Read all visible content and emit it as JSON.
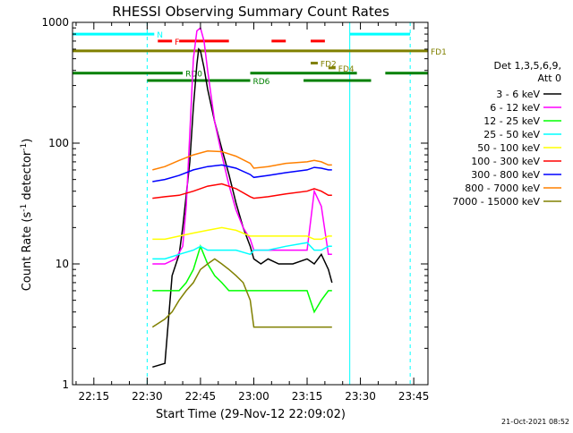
{
  "chart_data": {
    "type": "line",
    "title": "RHESSI Observing Summary Count Rates",
    "xlabel": "Start Time (29-Nov-12 22:09:02)",
    "ylabel": "Count Rate (s",
    "ylabel_sup": "-1",
    "ylabel_rest": " detector",
    "ylabel_sup2": "-1",
    "ylabel_end": ")",
    "y_scale": "log",
    "ylim": [
      1,
      1000
    ],
    "xlim_minutes": [
      0,
      100
    ],
    "x_tick_labels": [
      "22:15",
      "22:30",
      "22:45",
      "23:00",
      "23:15",
      "23:30",
      "23:45"
    ],
    "x_tick_minutes": [
      6,
      21,
      36,
      51,
      66,
      81,
      96
    ],
    "y_tick_labels": [
      "1",
      "10",
      "100",
      "1000"
    ],
    "y_tick_values": [
      1,
      10,
      100,
      1000
    ],
    "grid": false,
    "legend_header": [
      "Det 1,3,5,6,9,",
      "Att 0"
    ],
    "legend_placement": "right",
    "footer_date": "21-Oct-2021 08:52",
    "series": [
      {
        "name": "3 - 6 keV",
        "color": "#000000",
        "x": [
          22.5,
          26,
          28,
          30,
          31,
          33,
          34,
          35,
          35.5,
          36,
          37,
          38,
          40,
          42,
          44,
          46,
          48,
          50,
          51,
          53,
          55,
          58,
          62,
          66,
          68,
          70,
          72,
          73
        ],
        "y": [
          1.4,
          1.5,
          8,
          12,
          20,
          70,
          200,
          450,
          600,
          580,
          420,
          280,
          150,
          90,
          55,
          32,
          20,
          14,
          11,
          10,
          11,
          10,
          10,
          11,
          10,
          12,
          9,
          7
        ]
      },
      {
        "name": "6 - 12 keV",
        "color": "#ff00ff",
        "x": [
          22.5,
          26,
          29,
          31,
          32,
          33,
          34,
          35,
          36,
          37,
          38,
          40,
          42,
          44,
          46,
          48,
          50,
          51,
          55,
          60,
          66,
          68,
          70,
          72,
          73
        ],
        "y": [
          10,
          10,
          11,
          14,
          30,
          120,
          500,
          850,
          900,
          700,
          400,
          150,
          80,
          45,
          28,
          20,
          16,
          13,
          13,
          13,
          13,
          40,
          30,
          12,
          12
        ]
      },
      {
        "name": "12 - 25 keV",
        "color": "#00ff00",
        "x": [
          22.5,
          26,
          30,
          32,
          34,
          36,
          38,
          40,
          42,
          44,
          46,
          48,
          50,
          51,
          55,
          60,
          65,
          66,
          68,
          70,
          72,
          73
        ],
        "y": [
          6,
          6,
          6,
          7,
          9,
          14,
          10,
          8,
          7,
          6,
          6,
          6,
          6,
          6,
          6,
          6,
          6,
          6,
          4,
          5,
          6,
          6
        ]
      },
      {
        "name": "25 - 50 keV",
        "color": "#00ffff",
        "x": [
          22.5,
          26,
          30,
          34,
          36,
          38,
          42,
          46,
          50,
          51,
          55,
          60,
          66,
          68,
          70,
          72,
          73
        ],
        "y": [
          11,
          11,
          12,
          13,
          14,
          13,
          13,
          13,
          12,
          13,
          13,
          14,
          15,
          13,
          13,
          14,
          14
        ]
      },
      {
        "name": "50 - 100 keV",
        "color": "#ffff00",
        "x": [
          22.5,
          26,
          30,
          34,
          38,
          42,
          46,
          50,
          51,
          55,
          60,
          66,
          68,
          70,
          72,
          73
        ],
        "y": [
          16,
          16,
          17,
          18,
          19,
          20,
          19,
          17,
          17,
          17,
          17,
          17,
          16,
          16,
          17,
          17
        ]
      },
      {
        "name": "100 - 300 keV",
        "color": "#ff0000",
        "x": [
          22.5,
          26,
          30,
          34,
          38,
          42,
          46,
          50,
          51,
          55,
          60,
          66,
          68,
          70,
          72,
          73
        ],
        "y": [
          35,
          36,
          37,
          40,
          44,
          46,
          42,
          36,
          35,
          36,
          38,
          40,
          42,
          40,
          37,
          37
        ]
      },
      {
        "name": "300 - 800 keV",
        "color": "#0000ff",
        "x": [
          22.5,
          26,
          30,
          34,
          38,
          42,
          46,
          50,
          51,
          55,
          60,
          66,
          68,
          70,
          72,
          73
        ],
        "y": [
          48,
          50,
          54,
          60,
          64,
          66,
          62,
          55,
          52,
          54,
          57,
          60,
          63,
          62,
          60,
          60
        ]
      },
      {
        "name": "800 - 7000 keV",
        "color": "#ff8000",
        "x": [
          22.5,
          26,
          30,
          34,
          38,
          42,
          46,
          50,
          51,
          55,
          60,
          66,
          68,
          70,
          72,
          73
        ],
        "y": [
          60,
          64,
          72,
          80,
          86,
          85,
          78,
          68,
          62,
          64,
          68,
          70,
          72,
          70,
          66,
          66
        ]
      },
      {
        "name": "7000 - 15000 keV",
        "color": "#808000",
        "x": [
          22.5,
          26,
          28,
          30,
          32,
          34,
          36,
          38,
          40,
          42,
          44,
          46,
          48,
          50,
          51,
          55,
          60,
          66,
          68,
          70,
          72,
          73
        ],
        "y": [
          3,
          3.5,
          4,
          5,
          6,
          7,
          9,
          10,
          11,
          10,
          9,
          8,
          7,
          5,
          3,
          3,
          3,
          3,
          3,
          3,
          3,
          3
        ]
      }
    ],
    "annotation_bars": [
      {
        "label": "N",
        "color": "#00ffff",
        "y": 800,
        "segments": [
          [
            0,
            23
          ],
          [
            78,
            95
          ]
        ]
      },
      {
        "label": "F",
        "color": "#ff0000",
        "y": 700,
        "segments": [
          [
            24,
            28
          ],
          [
            30,
            44
          ],
          [
            56,
            60
          ],
          [
            67,
            71
          ]
        ]
      },
      {
        "label": "FD1",
        "color": "#808000",
        "y": 580,
        "segments": [
          [
            0,
            100
          ]
        ]
      },
      {
        "label": "FD2",
        "color": "#808000",
        "y": 460,
        "segments": [
          [
            67,
            69
          ]
        ]
      },
      {
        "label": "FD4",
        "color": "#808000",
        "y": 420,
        "segments": [
          [
            72,
            74
          ]
        ]
      },
      {
        "label": "RD0",
        "color": "#008000",
        "y": 380,
        "segments": [
          [
            0,
            31
          ],
          [
            50,
            80
          ],
          [
            88,
            100
          ]
        ]
      },
      {
        "label": "RD6",
        "color": "#008000",
        "y": 330,
        "segments": [
          [
            21,
            50
          ],
          [
            65,
            84
          ]
        ]
      }
    ],
    "vertical_markers": [
      {
        "x": 21,
        "color": "#00ffff",
        "style": "dashed"
      },
      {
        "x": 78,
        "color": "#00ffff",
        "style": "solid"
      },
      {
        "x": 95,
        "color": "#00ffff",
        "style": "dashed"
      }
    ]
  }
}
